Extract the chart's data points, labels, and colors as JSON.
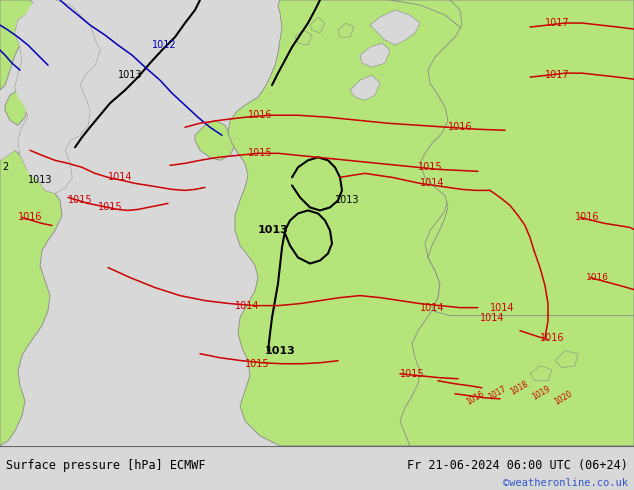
{
  "title_left": "Surface pressure [hPa] ECMWF",
  "title_right": "Fr 21-06-2024 06:00 UTC (06+24)",
  "credit": "©weatheronline.co.uk",
  "land_green": "#b5e57a",
  "sea_color": "#d8d8d8",
  "isobar_red": "#cc0000",
  "isobar_black": "#000000",
  "isobar_blue": "#0000bb",
  "coast_color": "#888888",
  "bottom_bar_color": "#ffffff",
  "bottom_text_color": "#000000",
  "credit_color": "#3355cc",
  "figsize": [
    6.34,
    4.9
  ],
  "dpi": 100,
  "font_size_bottom": 8.5,
  "font_size_credit": 7.5
}
